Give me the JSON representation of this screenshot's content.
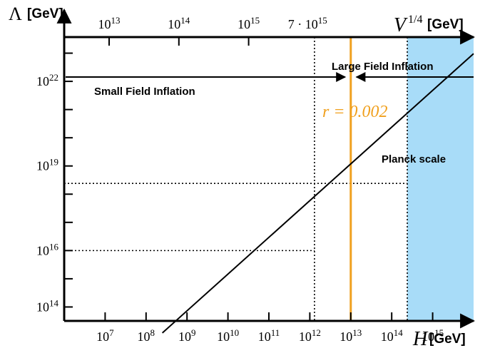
{
  "chart_data": {
    "type": "line",
    "x_axis": {
      "symbol": "H",
      "unit": "[GeV]",
      "scale": "log",
      "range": [
        1000000.0,
        1e+16
      ],
      "ticks": [
        {
          "value": 10000000.0,
          "base": "10",
          "exp": "7"
        },
        {
          "value": 100000000.0,
          "base": "10",
          "exp": "8"
        },
        {
          "value": 1000000000.0,
          "base": "10",
          "exp": "9"
        },
        {
          "value": 10000000000.0,
          "base": "10",
          "exp": "10"
        },
        {
          "value": 100000000000.0,
          "base": "10",
          "exp": "11"
        },
        {
          "value": 1000000000000.0,
          "base": "10",
          "exp": "12"
        },
        {
          "value": 10000000000000.0,
          "base": "10",
          "exp": "13"
        },
        {
          "value": 100000000000000.0,
          "base": "10",
          "exp": "14"
        },
        {
          "value": 1000000000000000.0,
          "base": "10",
          "exp": "15"
        }
      ]
    },
    "top_axis": {
      "symbol": "V",
      "exp": "1/4",
      "unit": "[GeV]",
      "scale": "log",
      "ticks": [
        {
          "value": 10000000000000.0,
          "base": "10",
          "exp": "13"
        },
        {
          "value": 100000000000000.0,
          "base": "10",
          "exp": "14"
        },
        {
          "value": 1000000000000000.0,
          "base": "10",
          "exp": "15"
        },
        {
          "value": 7000000000000000.0,
          "base": "7 · 10",
          "exp": "15"
        }
      ]
    },
    "y_axis": {
      "symbol": "Λ",
      "unit": "[GeV]",
      "scale": "log",
      "range": [
        10000000000000.0,
        1e+24
      ],
      "ticks": [
        {
          "value": 100000000000000.0,
          "base": "10",
          "exp": "14"
        },
        {
          "value": 1e+16,
          "base": "10",
          "exp": "16"
        },
        {
          "value": 1e+19,
          "base": "10",
          "exp": "19"
        },
        {
          "value": 1e+22,
          "base": "10",
          "exp": "22"
        }
      ],
      "minor_tick_exponents": [
        15,
        17,
        18,
        20,
        21,
        23
      ]
    },
    "series": [
      {
        "x": [
          250000000.0,
          1e+16
        ],
        "y": [
          12000000000000.0,
          9.6e+22
        ]
      }
    ],
    "guides": {
      "r_line_h": 10000000000000.0,
      "r_label": "r = 0.002",
      "small_field_boundary_h": 1300000000000.0,
      "large_field_boundary_h": 240000000000000.0,
      "planck_scale_lambda": 2.4e+18,
      "lambda_1e16_h": 1300000000000.0
    },
    "annotations": {
      "small_field": "Small Field Inflation",
      "large_field": "Large Field Inflation",
      "planck": "Planck scale"
    },
    "colors": {
      "r_line": "#f0a01e",
      "shade": "#a8dcf8",
      "axis": "#000000"
    }
  }
}
